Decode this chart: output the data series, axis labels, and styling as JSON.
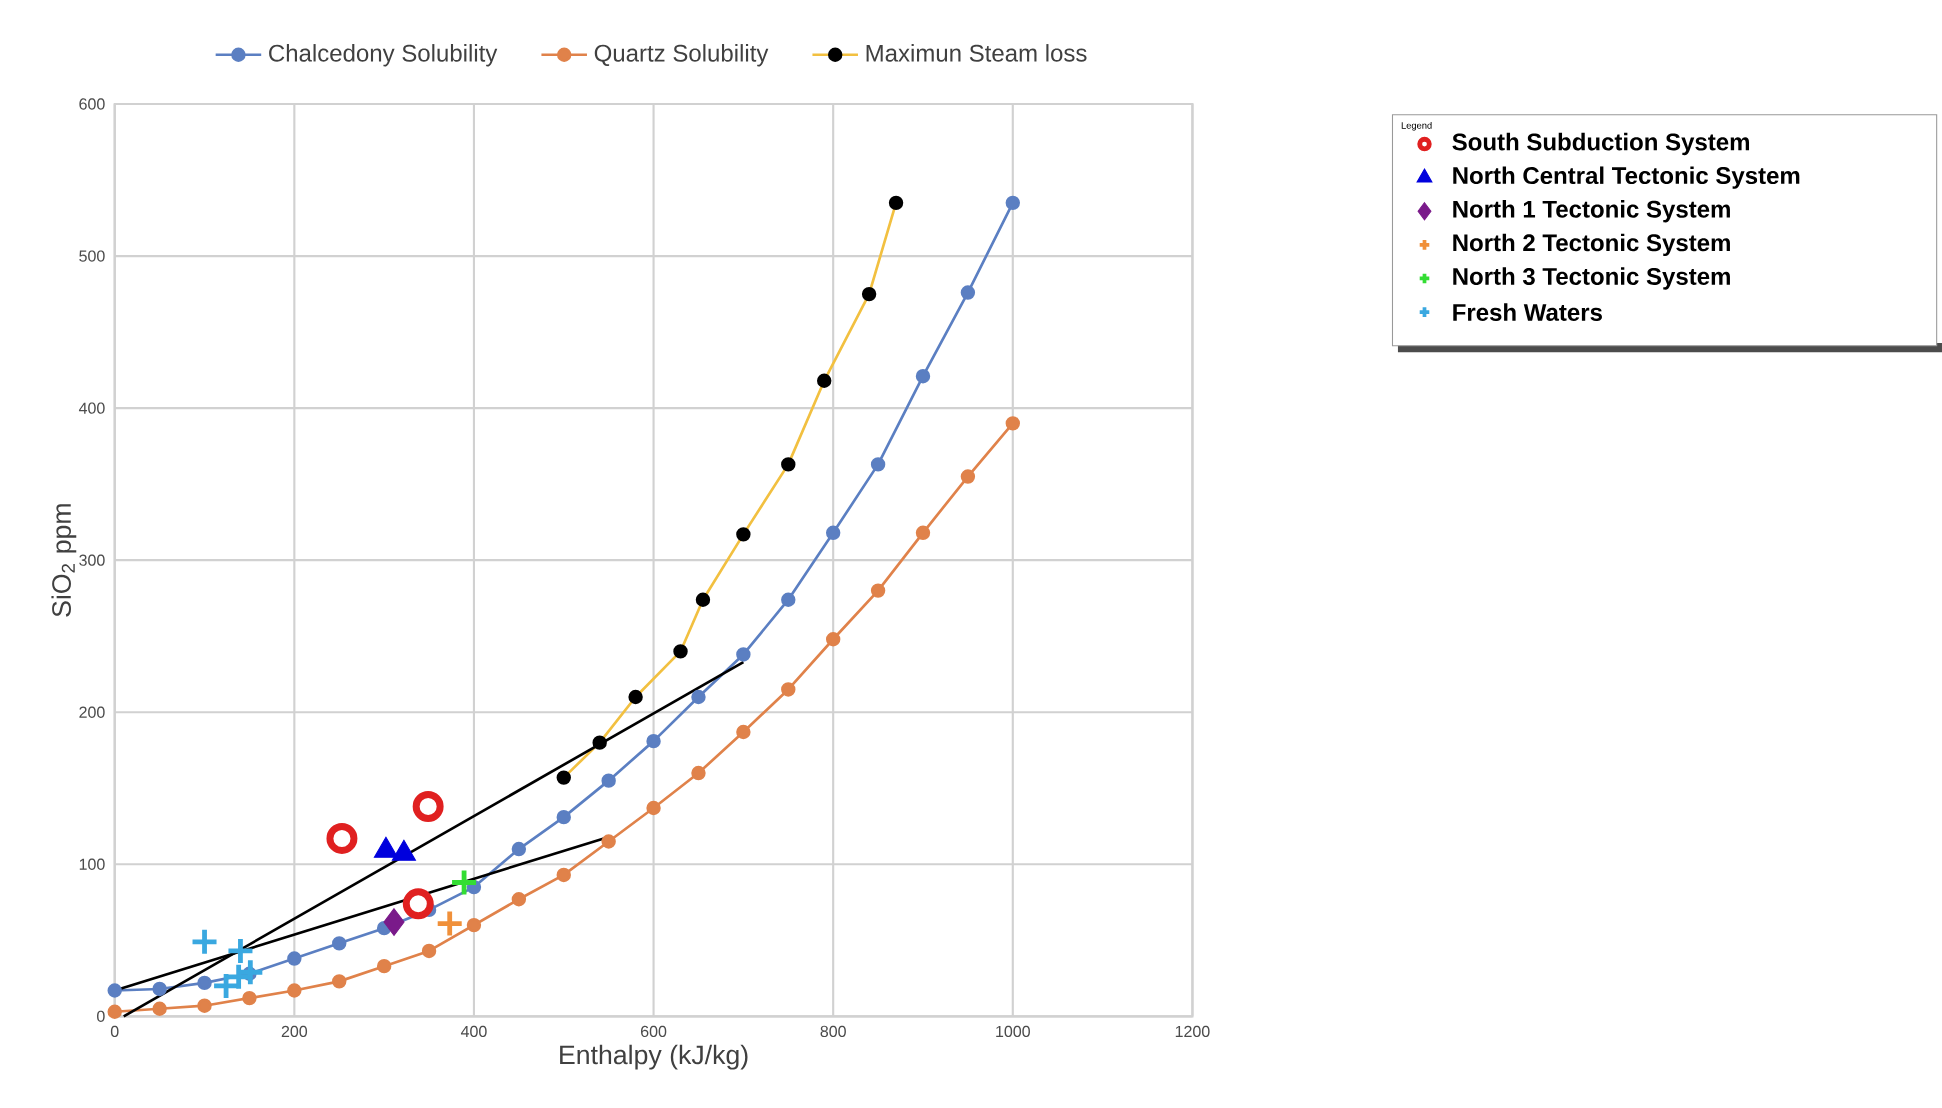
{
  "chart_data": {
    "type": "line",
    "xlabel": "Enthalpy (kJ/kg)",
    "ylabel": "SiO$_{2}$  ppm",
    "legend_title": "Legend",
    "xlim": [
      0,
      1200
    ],
    "ylim": [
      0,
      600
    ],
    "xticks": [
      0,
      200,
      400,
      600,
      800,
      1000,
      1200
    ],
    "yticks": [
      0,
      100,
      200,
      300,
      400,
      500,
      600
    ],
    "grid": true,
    "legend": "top",
    "series": [
      {
        "name": "Chalcedony Solubility",
        "color": "#5b7fc2",
        "marker": "circle",
        "x": [
          0,
          50,
          100,
          150,
          200,
          250,
          300,
          350,
          400,
          450,
          500,
          550,
          600,
          650,
          700,
          750,
          800,
          850,
          900,
          950,
          1000
        ],
        "values": [
          17,
          18,
          22,
          28,
          38,
          48,
          58,
          70,
          85,
          110,
          131,
          155,
          181,
          210,
          238,
          274,
          318,
          363,
          421,
          476,
          535
        ]
      },
      {
        "name": "Quartz Solubility",
        "color": "#e0824a",
        "marker": "circle",
        "x": [
          0,
          50,
          100,
          150,
          200,
          250,
          300,
          350,
          400,
          450,
          500,
          550,
          600,
          650,
          700,
          750,
          800,
          850,
          900,
          950,
          1000
        ],
        "values": [
          3,
          5,
          7,
          12,
          17,
          23,
          33,
          43,
          60,
          77,
          93,
          115,
          137,
          160,
          187,
          215,
          248,
          280,
          318,
          355,
          390
        ]
      },
      {
        "name": "Maximun Steam loss",
        "color": "#f2c040",
        "marker": "circle",
        "x": [
          500,
          540,
          580,
          630,
          655,
          700,
          750,
          790,
          840,
          870
        ],
        "values": [
          157,
          180,
          210,
          240,
          274,
          317,
          363,
          418,
          475,
          535
        ]
      },
      {
        "color": "#000000",
        "marker": "none",
        "x": [
          10,
          700
        ],
        "values": [
          0,
          233
        ]
      },
      {
        "color": "#000000",
        "marker": "none",
        "x": [
          0,
          550
        ],
        "values": [
          17,
          118
        ]
      },
      {
        "name": "South Subduction System",
        "type": "scatter",
        "color": "#e02020",
        "marker": "circle",
        "x": [
          253,
          349,
          338
        ],
        "values": [
          117,
          138,
          74
        ]
      },
      {
        "name": "North Central Tectonic System",
        "type": "scatter",
        "color": "#0000dd",
        "marker": "triangle",
        "x": [
          302,
          322
        ],
        "values": [
          109,
          107
        ]
      },
      {
        "name": "North 1   Tectonic System",
        "type": "scatter",
        "color": "#7a1a8a",
        "marker": "diamond",
        "x": [
          311
        ],
        "values": [
          62
        ]
      },
      {
        "name": "North 2    Tectonic System",
        "type": "scatter",
        "color": "#f0903a",
        "marker": "cross",
        "x": [
          373
        ],
        "values": [
          61
        ]
      },
      {
        "name": "North  3  Tectonic System",
        "type": "scatter",
        "color": "#33dd33",
        "marker": "cross",
        "x": [
          389
        ],
        "values": [
          88
        ]
      },
      {
        "name": "Fresh  Waters",
        "type": "scatter",
        "color": "#3aa8e0",
        "marker": "cross",
        "x": [
          100,
          140,
          124,
          138,
          151
        ],
        "values": [
          49,
          43,
          20,
          26,
          29
        ]
      }
    ]
  }
}
